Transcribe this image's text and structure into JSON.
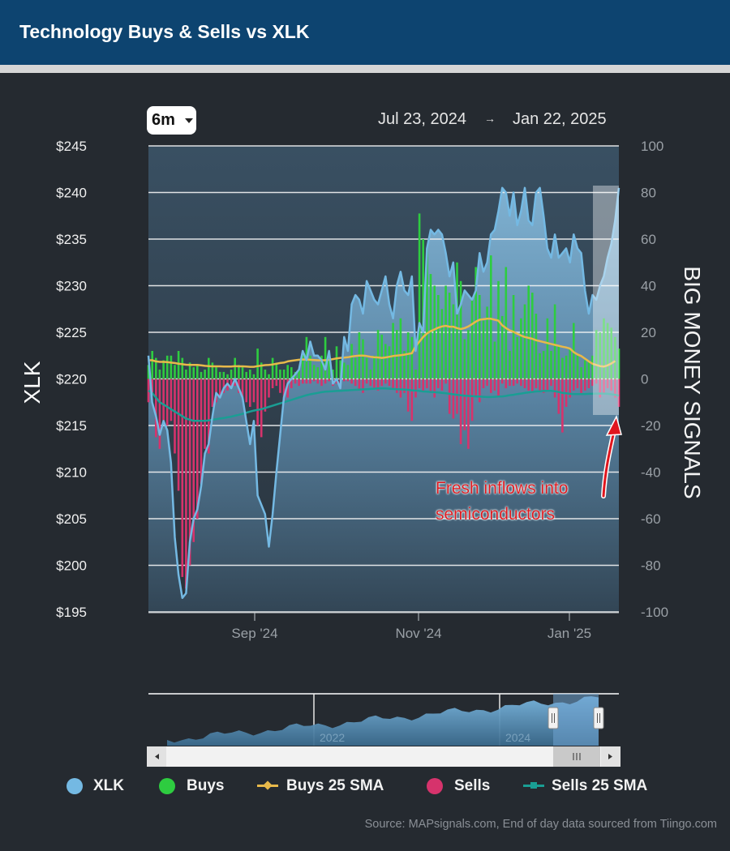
{
  "header": {
    "title": "Technology Buys & Sells vs XLK"
  },
  "controls": {
    "range_label": "6m",
    "date_start": "Jul 23, 2024",
    "date_arrow": "→",
    "date_end": "Jan 22, 2025"
  },
  "colors": {
    "header": "#0d4470",
    "xlk": "#74b9e3",
    "buys": "#2ecc40",
    "buys_sma": "#e8b94a",
    "sells": "#d6336c",
    "sells_sma": "#1a9e94",
    "annotation": "#e0161e"
  },
  "legend": [
    {
      "label": "XLK"
    },
    {
      "label": "Buys"
    },
    {
      "label": "Buys 25 SMA"
    },
    {
      "label": "Sells"
    },
    {
      "label": "Sells 25 SMA"
    }
  ],
  "annotation": {
    "line1": "Fresh inflows into",
    "line2": "semiconductors"
  },
  "source": "Source: MAPsignals.com, End of day data sourced from Tiingo.com",
  "navigator": {
    "year_labels": [
      "2022",
      "2024"
    ]
  },
  "chart_data": {
    "type": "line",
    "ylabel_left": "XLK",
    "ylabel_right": "BIG MONEY SIGNALS",
    "y_left": {
      "min": 195,
      "max": 245,
      "ticks": [
        "$245",
        "$240",
        "$235",
        "$230",
        "$225",
        "$220",
        "$215",
        "$210",
        "$205",
        "$200",
        "$195"
      ]
    },
    "y_right": {
      "min": -100,
      "max": 100,
      "ticks": [
        "100",
        "80",
        "60",
        "40",
        "20",
        "0",
        "-20",
        "-40",
        "-60",
        "-80",
        "-100"
      ]
    },
    "x_ticks": [
      "Sep '24",
      "Nov '24",
      "Jan '25"
    ],
    "grid": true,
    "legend_position": "bottom",
    "xlk": {
      "name": "XLK",
      "x": [
        "2024-07-23",
        "2024-07-24",
        "2024-07-25",
        "2024-07-26",
        "2024-07-29",
        "2024-07-30",
        "2024-07-31",
        "2024-08-01",
        "2024-08-02",
        "2024-08-05",
        "2024-08-06",
        "2024-08-07",
        "2024-08-08",
        "2024-08-09",
        "2024-08-12",
        "2024-08-13",
        "2024-08-14",
        "2024-08-15",
        "2024-08-16",
        "2024-08-19",
        "2024-08-20",
        "2024-08-21",
        "2024-08-22",
        "2024-08-23",
        "2024-08-26",
        "2024-08-27",
        "2024-08-28",
        "2024-08-29",
        "2024-08-30",
        "2024-09-03",
        "2024-09-04",
        "2024-09-05",
        "2024-09-06",
        "2024-09-09",
        "2024-09-10",
        "2024-09-11",
        "2024-09-12",
        "2024-09-13",
        "2024-09-16",
        "2024-09-17",
        "2024-09-18",
        "2024-09-19",
        "2024-09-20",
        "2024-09-23",
        "2024-09-24",
        "2024-09-25",
        "2024-09-26",
        "2024-09-27",
        "2024-09-30",
        "2024-10-01",
        "2024-10-02",
        "2024-10-03",
        "2024-10-04",
        "2024-10-07",
        "2024-10-08",
        "2024-10-09",
        "2024-10-10",
        "2024-10-11",
        "2024-10-14",
        "2024-10-15",
        "2024-10-16",
        "2024-10-17",
        "2024-10-18",
        "2024-10-21",
        "2024-10-22",
        "2024-10-23",
        "2024-10-24",
        "2024-10-25",
        "2024-10-28",
        "2024-10-29",
        "2024-10-30",
        "2024-10-31",
        "2024-11-01",
        "2024-11-04",
        "2024-11-05",
        "2024-11-06",
        "2024-11-07",
        "2024-11-08",
        "2024-11-11",
        "2024-11-12",
        "2024-11-13",
        "2024-11-14",
        "2024-11-15",
        "2024-11-18",
        "2024-11-19",
        "2024-11-20",
        "2024-11-21",
        "2024-11-22",
        "2024-11-25",
        "2024-11-26",
        "2024-11-27",
        "2024-11-29",
        "2024-12-02",
        "2024-12-03",
        "2024-12-04",
        "2024-12-05",
        "2024-12-06",
        "2024-12-09",
        "2024-12-10",
        "2024-12-11",
        "2024-12-12",
        "2024-12-13",
        "2024-12-16",
        "2024-12-17",
        "2024-12-18",
        "2024-12-19",
        "2024-12-20",
        "2024-12-23",
        "2024-12-24",
        "2024-12-26",
        "2024-12-27",
        "2024-12-30",
        "2024-12-31",
        "2025-01-02",
        "2025-01-03",
        "2025-01-06",
        "2025-01-07",
        "2025-01-08",
        "2025-01-10",
        "2025-01-13",
        "2025-01-14",
        "2025-01-15",
        "2025-01-16",
        "2025-01-17",
        "2025-01-21",
        "2025-01-22"
      ],
      "values": [
        222.5,
        217.5,
        216.0,
        214.0,
        215.5,
        214.5,
        211.0,
        203.0,
        199.0,
        196.5,
        197.0,
        202.5,
        205.0,
        206.0,
        208.5,
        212.0,
        213.0,
        216.0,
        218.5,
        218.0,
        219.0,
        219.5,
        219.0,
        220.0,
        219.0,
        218.0,
        215.5,
        213.0,
        215.5,
        207.5,
        206.5,
        205.5,
        202.0,
        205.5,
        210.0,
        214.0,
        218.0,
        219.5,
        220.0,
        220.5,
        221.0,
        223.0,
        222.0,
        224.0,
        222.5,
        222.5,
        222.0,
        221.0,
        223.0,
        219.5,
        220.0,
        219.0,
        224.5,
        223.0,
        228.0,
        229.0,
        228.5,
        227.0,
        230.5,
        229.5,
        228.5,
        228.0,
        229.5,
        231.0,
        228.0,
        226.5,
        230.0,
        231.5,
        229.5,
        229.0,
        231.0,
        223.0,
        226.0,
        225.0,
        234.0,
        236.0,
        235.5,
        236.0,
        235.5,
        233.5,
        231.0,
        232.5,
        227.0,
        228.0,
        229.5,
        229.0,
        228.5,
        229.5,
        233.5,
        231.5,
        232.5,
        235.5,
        236.0,
        238.0,
        240.5,
        240.0,
        237.5,
        240.0,
        236.5,
        238.0,
        240.5,
        237.0,
        236.5,
        240.0,
        240.5,
        237.5,
        234.0,
        233.0,
        235.5,
        233.0,
        233.5,
        234.0,
        232.5,
        235.5,
        234.0,
        233.5,
        229.5,
        227.0,
        229.0,
        228.5,
        230.0,
        231.0,
        233.0,
        234.5,
        237.0,
        240.5
      ]
    },
    "buys": {
      "name": "Buys",
      "values": [
        6,
        12,
        9,
        4,
        8,
        10,
        10,
        6,
        12,
        9,
        4,
        7,
        5,
        6,
        3,
        4,
        9,
        7,
        5,
        3,
        3,
        2,
        4,
        9,
        6,
        5,
        3,
        4,
        2,
        13,
        7,
        4,
        2,
        9,
        7,
        4,
        4,
        6,
        5,
        3,
        4,
        12,
        18,
        10,
        6,
        5,
        10,
        18,
        9,
        4,
        14,
        8,
        7,
        6,
        15,
        9,
        20,
        17,
        9,
        4,
        10,
        21,
        19,
        15,
        14,
        24,
        21,
        26,
        12,
        20,
        18,
        4,
        71,
        60,
        56,
        45,
        40,
        36,
        30,
        40,
        37,
        32,
        50,
        42,
        17,
        21,
        35,
        48,
        36,
        25,
        31,
        53,
        16,
        42,
        27,
        48,
        12,
        36,
        18,
        26,
        32,
        40,
        37,
        28,
        11,
        12,
        26,
        12,
        32,
        14,
        9,
        10,
        13,
        24,
        10,
        5,
        8,
        8,
        10,
        21,
        20,
        26,
        24,
        22,
        18,
        13
      ]
    },
    "buys_sma": {
      "name": "Buys 25 SMA",
      "values": [
        8,
        8,
        7.5,
        7.3,
        7.3,
        7.2,
        7,
        6.8,
        6.5,
        6.3,
        6.1,
        6,
        6,
        6,
        5.8,
        5.6,
        5.5,
        5.4,
        5.4,
        5.4,
        5.3,
        5.3,
        5.3,
        5.5,
        5.4,
        5.4,
        5.3,
        5.2,
        5.2,
        5.5,
        5.7,
        5.9,
        6,
        6.2,
        6.5,
        6.8,
        7,
        7.5,
        7.8,
        8,
        8.2,
        8.3,
        8.3,
        8.2,
        8.1,
        8,
        8,
        8,
        8.2,
        8.5,
        8.8,
        9,
        9.1,
        9.3,
        9.6,
        9.8,
        10,
        10,
        9.8,
        9.5,
        9.3,
        9.2,
        9,
        9.2,
        9.5,
        9.8,
        10,
        10.2,
        10.4,
        10.7,
        11,
        14,
        16,
        18,
        19.5,
        20.5,
        21.2,
        22,
        22.5,
        22.8,
        22.4,
        22.4,
        21.8,
        21.4,
        21.8,
        22.5,
        23.5,
        24.6,
        25.4,
        25.6,
        25.8,
        25.8,
        25.4,
        25,
        23,
        21.8,
        20.8,
        20.2,
        19.4,
        18.6,
        18,
        17.6,
        17.2,
        16.6,
        16.2,
        15.8,
        15.4,
        15,
        14.6,
        14.2,
        13.8,
        13.5,
        13,
        11.5,
        10.5,
        9.8,
        8.7,
        7.5,
        6.5,
        6,
        5.5,
        5.3,
        5.8,
        6.6,
        7.7
      ]
    },
    "sells": {
      "name": "Sells",
      "values": [
        -10,
        -6,
        -25,
        -30,
        -18,
        -20,
        -18,
        -32,
        -48,
        -85,
        -90,
        -80,
        -70,
        -60,
        -45,
        -30,
        -32,
        -12,
        -10,
        -8,
        -6,
        -5,
        -4,
        -3,
        -6,
        -8,
        -10,
        -12,
        -10,
        -20,
        -25,
        -14,
        -8,
        -4,
        -3,
        -6,
        -10,
        -8,
        -4,
        -2,
        -3,
        -2,
        -2,
        -2,
        -1,
        -2,
        -3,
        -2,
        -1,
        -3,
        -2,
        -2,
        -1,
        -1,
        -2,
        -3,
        -5,
        -6,
        -2,
        -3,
        -4,
        -5,
        -3,
        -2,
        -3,
        -4,
        -6,
        -8,
        -6,
        -14,
        -18,
        -8,
        -4,
        -5,
        -4,
        -6,
        -8,
        -4,
        -5,
        -2,
        -15,
        -17,
        -15,
        -28,
        -22,
        -30,
        -18,
        -8,
        -10,
        -4,
        -3,
        -6,
        -5,
        -8,
        -2,
        -4,
        -3,
        -3,
        -2,
        -3,
        -4,
        -5,
        -6,
        -4,
        -5,
        -6,
        -5,
        -3,
        -8,
        -15,
        -23,
        -12,
        -8,
        -5,
        -4,
        -6,
        -5,
        -4,
        -3,
        -2,
        -8,
        -6,
        -4,
        -5,
        -8,
        -12
      ]
    },
    "sells_sma": {
      "name": "Sells 25 SMA",
      "values": [
        -5,
        -6,
        -8,
        -10,
        -11,
        -12,
        -13,
        -14,
        -15,
        -16,
        -17,
        -17.5,
        -18,
        -18,
        -18,
        -18,
        -17.8,
        -17.5,
        -17.3,
        -17,
        -16.8,
        -16.5,
        -16.2,
        -15.8,
        -15.4,
        -15,
        -14.5,
        -14,
        -13.6,
        -13.3,
        -13,
        -12.5,
        -12,
        -11.5,
        -11,
        -10.5,
        -10,
        -9.5,
        -9,
        -8.5,
        -8,
        -7.5,
        -7,
        -6.6,
        -6.3,
        -6,
        -5.7,
        -5.5,
        -5.4,
        -5.3,
        -5.2,
        -5.1,
        -5,
        -4.9,
        -4.8,
        -4.7,
        -4.6,
        -4.5,
        -4.4,
        -4.3,
        -4.2,
        -4.1,
        -4.1,
        -4.1,
        -4.2,
        -4.3,
        -4.4,
        -4.5,
        -4.6,
        -4.7,
        -4.9,
        -5,
        -5.2,
        -5.4,
        -5.5,
        -5.6,
        -5.7,
        -5.8,
        -6,
        -6.2,
        -6.4,
        -6.6,
        -6.8,
        -7,
        -7.2,
        -7.3,
        -7.4,
        -7.5,
        -7.6,
        -7.7,
        -7.8,
        -7.8,
        -7.7,
        -7.6,
        -7.5,
        -7.3,
        -7,
        -6.8,
        -6.5,
        -6.3,
        -6,
        -5.8,
        -5.6,
        -5.4,
        -5.3,
        -5.2,
        -5.1,
        -5.1,
        -5.3,
        -5.6,
        -6,
        -6.2,
        -6.4,
        -6.5,
        -6.5,
        -6.5,
        -6.5,
        -6.4,
        -6.4,
        -6.3,
        -6.3,
        -6.3,
        -6.4,
        -6.6,
        -6.8,
        -7.2
      ]
    }
  }
}
